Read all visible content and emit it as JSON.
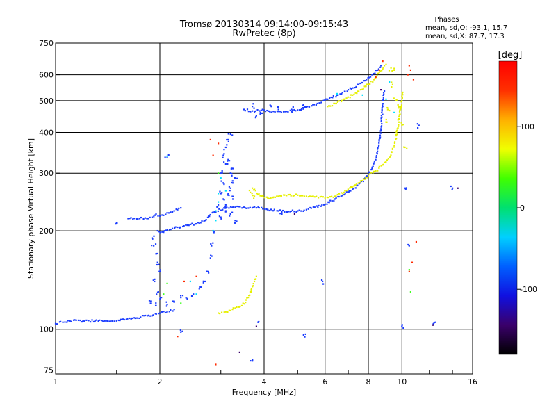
{
  "chart_data": {
    "type": "scatter",
    "title": "Tromsø 20130314 09:14:00-09:15:43",
    "subtitle": "RwPretec (8p)",
    "xlabel": "Frequency [MHz]",
    "ylabel": "Stationary phase Virtual Height [km]",
    "x_scale": "log",
    "y_scale": "log",
    "xlim": [
      1,
      16
    ],
    "ylim": [
      73,
      750
    ],
    "x_ticks": [
      1,
      2,
      4,
      6,
      8,
      10,
      16
    ],
    "y_ticks": [
      75,
      100,
      200,
      300,
      400,
      500,
      600,
      750
    ],
    "grid": true,
    "phase_stats": {
      "heading": "Phases",
      "line_o": "mean, sd,O: -93.1, 15.7",
      "line_x": "mean, sd,X:  87.7, 17.3"
    },
    "colorbar": {
      "label": "[deg]",
      "ticks": [
        100,
        0,
        -100
      ],
      "range": [
        -180,
        180
      ],
      "colors": [
        "#000000",
        "#3a006a",
        "#1010e0",
        "#0060ff",
        "#00d0ff",
        "#00e070",
        "#40ff00",
        "#f0ff00",
        "#ffb000",
        "#ff3000",
        "#ff0000"
      ]
    },
    "series": [
      {
        "name": "O",
        "phase_deg": -100,
        "color": "#1a3cff",
        "trace": [
          [
            1.0,
            104
          ],
          [
            1.05,
            105
          ],
          [
            1.1,
            106
          ],
          [
            1.2,
            106
          ],
          [
            1.3,
            106
          ],
          [
            1.4,
            106
          ],
          [
            1.5,
            106
          ],
          [
            1.6,
            107
          ],
          [
            1.7,
            108
          ],
          [
            1.8,
            110
          ],
          [
            1.9,
            110
          ],
          [
            2.0,
            112
          ],
          [
            2.1,
            113
          ],
          [
            2.2,
            115
          ],
          [
            1.62,
            218
          ],
          [
            1.75,
            218
          ],
          [
            1.85,
            218
          ],
          [
            1.9,
            220
          ],
          [
            1.95,
            225
          ],
          [
            2.0,
            222
          ],
          [
            2.05,
            223
          ],
          [
            2.1,
            227
          ],
          [
            2.15,
            228
          ],
          [
            2.2,
            230
          ],
          [
            2.25,
            232
          ],
          [
            2.3,
            235
          ],
          [
            1.97,
            200
          ],
          [
            2.05,
            198
          ],
          [
            2.15,
            202
          ],
          [
            2.25,
            205
          ],
          [
            2.4,
            208
          ],
          [
            2.55,
            210
          ],
          [
            2.7,
            215
          ],
          [
            2.85,
            228
          ],
          [
            3.1,
            235
          ],
          [
            3.3,
            236
          ],
          [
            3.5,
            236
          ],
          [
            3.8,
            235
          ],
          [
            4.1,
            232
          ],
          [
            4.4,
            230
          ],
          [
            4.7,
            229
          ],
          [
            5.0,
            230
          ],
          [
            5.3,
            232
          ],
          [
            5.6,
            236
          ],
          [
            6.0,
            241
          ],
          [
            6.4,
            250
          ],
          [
            6.8,
            258
          ],
          [
            7.2,
            268
          ],
          [
            7.6,
            280
          ],
          [
            8.0,
            297
          ],
          [
            8.2,
            310
          ],
          [
            8.4,
            330
          ],
          [
            8.5,
            350
          ],
          [
            8.6,
            380
          ],
          [
            8.7,
            410
          ],
          [
            8.75,
            445
          ],
          [
            8.8,
            480
          ],
          [
            8.85,
            510
          ],
          [
            8.9,
            535
          ],
          [
            3.5,
            470
          ],
          [
            3.7,
            465
          ],
          [
            4.0,
            468
          ],
          [
            4.3,
            462
          ],
          [
            4.6,
            463
          ],
          [
            5.0,
            468
          ],
          [
            5.3,
            478
          ],
          [
            5.7,
            490
          ],
          [
            6.1,
            505
          ],
          [
            6.5,
            520
          ],
          [
            7.0,
            540
          ],
          [
            7.5,
            560
          ],
          [
            7.9,
            580
          ],
          [
            8.2,
            600
          ],
          [
            8.5,
            620
          ],
          [
            8.7,
            640
          ]
        ],
        "scatter": [
          [
            1.9,
            190
          ],
          [
            1.92,
            180
          ],
          [
            1.95,
            170
          ],
          [
            1.97,
            160
          ],
          [
            2.0,
            150
          ],
          [
            1.93,
            140
          ],
          [
            1.98,
            130
          ],
          [
            2.02,
            125
          ],
          [
            1.88,
            120
          ],
          [
            1.95,
            118
          ],
          [
            2.1,
            119
          ],
          [
            2.2,
            121
          ],
          [
            2.3,
            125
          ],
          [
            2.4,
            124
          ],
          [
            2.5,
            128
          ],
          [
            2.6,
            133
          ],
          [
            2.7,
            140
          ],
          [
            2.75,
            150
          ],
          [
            2.8,
            165
          ],
          [
            2.82,
            180
          ],
          [
            2.85,
            200
          ],
          [
            2.95,
            240
          ],
          [
            3.0,
            260
          ],
          [
            3.05,
            280
          ],
          [
            3.0,
            300
          ],
          [
            3.1,
            320
          ],
          [
            3.05,
            340
          ],
          [
            3.1,
            360
          ],
          [
            3.15,
            380
          ],
          [
            3.2,
            395
          ],
          [
            3.2,
            300
          ],
          [
            3.25,
            280
          ],
          [
            3.15,
            260
          ],
          [
            3.25,
            250
          ],
          [
            3.1,
            240
          ],
          [
            3.2,
            225
          ],
          [
            3.3,
            215
          ],
          [
            3.0,
            220
          ],
          [
            3.1,
            230
          ],
          [
            3.05,
            250
          ],
          [
            3.2,
            270
          ],
          [
            3.3,
            290
          ],
          [
            3.25,
            310
          ],
          [
            3.15,
            330
          ],
          [
            3.7,
            480
          ],
          [
            3.8,
            450
          ],
          [
            4.2,
            480
          ],
          [
            4.8,
            470
          ],
          [
            5.2,
            485
          ],
          [
            3.9,
            455
          ],
          [
            4.4,
            470
          ],
          [
            1.5,
            212
          ],
          [
            2.1,
            335
          ],
          [
            2.3,
            98
          ],
          [
            3.7,
            80
          ],
          [
            4.5,
            225
          ],
          [
            5.2,
            96
          ],
          [
            3.85,
            105
          ],
          [
            5.9,
            140
          ],
          [
            12.5,
            105
          ],
          [
            11.2,
            420
          ],
          [
            10.5,
            180
          ],
          [
            14.0,
            270
          ],
          [
            10.2,
            270
          ],
          [
            10.0,
            102
          ]
        ]
      },
      {
        "name": "X",
        "phase_deg": 100,
        "color": "#e6f000",
        "trace": [
          [
            3.7,
            270
          ],
          [
            3.9,
            256
          ],
          [
            4.1,
            252
          ],
          [
            4.4,
            255
          ],
          [
            4.7,
            258
          ],
          [
            5.0,
            257
          ],
          [
            5.3,
            255
          ],
          [
            5.6,
            254
          ],
          [
            6.0,
            252
          ],
          [
            6.4,
            255
          ],
          [
            6.8,
            262
          ],
          [
            7.2,
            272
          ],
          [
            7.6,
            284
          ],
          [
            8.0,
            295
          ],
          [
            8.4,
            305
          ],
          [
            8.8,
            318
          ],
          [
            9.2,
            335
          ],
          [
            9.4,
            355
          ],
          [
            9.6,
            380
          ],
          [
            9.7,
            410
          ],
          [
            9.8,
            440
          ],
          [
            9.9,
            470
          ],
          [
            10.0,
            500
          ],
          [
            10.05,
            530
          ],
          [
            6.1,
            480
          ],
          [
            6.4,
            490
          ],
          [
            6.8,
            505
          ],
          [
            7.2,
            520
          ],
          [
            7.6,
            540
          ],
          [
            8.0,
            560
          ],
          [
            8.3,
            580
          ],
          [
            8.6,
            610
          ],
          [
            8.9,
            640
          ],
          [
            9.0,
            645
          ],
          [
            2.95,
            112
          ],
          [
            3.1,
            113
          ],
          [
            3.2,
            114
          ],
          [
            3.3,
            116
          ],
          [
            3.45,
            118
          ],
          [
            3.6,
            125
          ],
          [
            3.7,
            135
          ],
          [
            3.75,
            140
          ],
          [
            3.8,
            145
          ]
        ],
        "scatter": [
          [
            3.65,
            262
          ],
          [
            3.75,
            255
          ],
          [
            9.3,
            630
          ],
          [
            9.5,
            620
          ],
          [
            9.4,
            560
          ],
          [
            9.6,
            500
          ],
          [
            9.8,
            480
          ],
          [
            10.0,
            420
          ],
          [
            10.2,
            360
          ],
          [
            9.0,
            430
          ],
          [
            9.1,
            470
          ]
        ]
      },
      {
        "name": "",
        "phase_deg": 30,
        "color": "#00e0ff",
        "trace": [],
        "scatter": [
          [
            2.85,
            200
          ],
          [
            2.9,
            230
          ],
          [
            2.95,
            260
          ],
          [
            3.0,
            290
          ],
          [
            3.1,
            265
          ],
          [
            2.9,
            215
          ],
          [
            2.95,
            245
          ],
          [
            9.2,
            570
          ],
          [
            9.5,
            460
          ],
          [
            2.45,
            140
          ],
          [
            2.1,
            338
          ],
          [
            2.55,
            128
          ],
          [
            6.5,
            525
          ],
          [
            7.7,
            520
          ],
          [
            9.0,
            505
          ]
        ]
      },
      {
        "name": "",
        "phase_deg": 175,
        "color": "#ff2a00",
        "trace": [],
        "scatter": [
          [
            2.8,
            380
          ],
          [
            2.85,
            340
          ],
          [
            2.9,
            78
          ],
          [
            2.25,
            95
          ],
          [
            10.5,
            640
          ],
          [
            10.4,
            600
          ],
          [
            10.6,
            620
          ],
          [
            10.8,
            580
          ],
          [
            11.0,
            185
          ],
          [
            10.7,
            160
          ],
          [
            10.5,
            150
          ],
          [
            2.35,
            140
          ],
          [
            2.55,
            145
          ],
          [
            8.6,
            620
          ],
          [
            8.8,
            660
          ],
          [
            2.95,
            370
          ],
          [
            8.4,
            590
          ]
        ]
      },
      {
        "name": "",
        "phase_deg": 55,
        "color": "#40ff20",
        "trace": [],
        "scatter": [
          [
            2.3,
            120
          ],
          [
            10.6,
            130
          ],
          [
            10.5,
            152
          ],
          [
            2.1,
            138
          ],
          [
            2.05,
            128
          ],
          [
            2.95,
            300
          ]
        ]
      },
      {
        "name": "",
        "phase_deg": -140,
        "color": "#3a006a",
        "trace": [],
        "scatter": [
          [
            3.8,
            102
          ],
          [
            3.4,
            85
          ],
          [
            12.3,
            103
          ],
          [
            4.9,
            225
          ],
          [
            8.7,
            540
          ],
          [
            14.5,
            270
          ]
        ]
      }
    ]
  }
}
